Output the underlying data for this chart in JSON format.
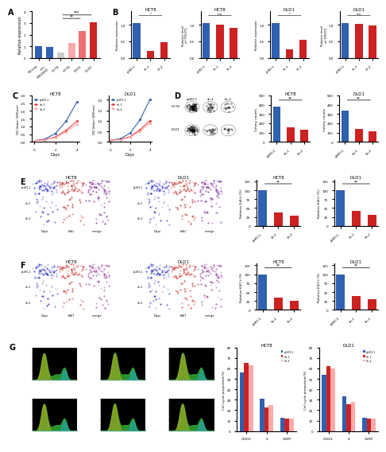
{
  "panel_A": {
    "categories": [
      "NCneg",
      "circ0062682",
      "HCT8",
      "HCT8_s",
      "DLD1",
      "DLD1_s"
    ],
    "tick_labels": [
      "NCneg",
      "circ-\n0062682",
      "HCT8",
      "HCT8",
      "DLD1",
      "DLD1"
    ],
    "values": [
      1.0,
      0.92,
      0.45,
      1.25,
      2.3,
      3.05
    ],
    "colors": [
      "#3060B0",
      "#3060B0",
      "#CCCCCC",
      "#F8AAAA",
      "#EE7070",
      "#CC2222"
    ],
    "ylabel": "Relative expression",
    "ylim": [
      0,
      4.0
    ],
    "sig_pairs": [
      [
        2,
        4,
        "**",
        3.4
      ],
      [
        2,
        5,
        "***",
        3.7
      ]
    ]
  },
  "panel_B": {
    "charts": [
      {
        "title": "HCT8",
        "ylabel": "Relative expression",
        "categories": [
          "pLKO.1",
          "sh-1",
          "sh-2"
        ],
        "values": [
          1.05,
          0.22,
          0.48
        ],
        "colors": [
          "#3060B0",
          "#CC2222",
          "#CC2222"
        ],
        "ylim": [
          0,
          1.4
        ],
        "sig": "*",
        "yticks": [
          0,
          0.5,
          1.0
        ]
      },
      {
        "title": "HCT8",
        "ylabel": "Relative level\nof TP53T2",
        "categories": [
          "pLKO.1",
          "sh-1",
          "sh-2"
        ],
        "values": [
          1.05,
          1.0,
          0.9
        ],
        "colors": [
          "#3060B0",
          "#CC2222",
          "#CC2222"
        ],
        "ylim": [
          0,
          1.4
        ],
        "sig": "n.s.",
        "yticks": [
          0,
          0.5,
          1.0
        ]
      },
      {
        "title": "DLD1",
        "ylabel": "Relative expression",
        "categories": [
          "pLKO.1",
          "sh-1",
          "sh-2"
        ],
        "values": [
          1.05,
          0.25,
          0.55
        ],
        "colors": [
          "#3060B0",
          "#CC2222",
          "#CC2222"
        ],
        "ylim": [
          0,
          1.4
        ],
        "sig": "*",
        "yticks": [
          0,
          0.5,
          1.0
        ]
      },
      {
        "title": "DLD1",
        "ylabel": "Relative level\nof TP53T2",
        "categories": [
          "pLKO.1",
          "sh-1",
          "sh-2"
        ],
        "values": [
          1.05,
          1.02,
          0.98
        ],
        "colors": [
          "#3060B0",
          "#CC2222",
          "#CC2222"
        ],
        "ylim": [
          0,
          1.4
        ],
        "sig": "n.s.",
        "yticks": [
          0,
          0.5,
          1.0
        ]
      }
    ]
  },
  "panel_C": {
    "HCT8": {
      "title": "HCT8",
      "xlabel": "Days",
      "ylabel": "OD Value (490nm)",
      "days": [
        0,
        1,
        2,
        3,
        4
      ],
      "series": [
        {
          "label": "pLKO.1",
          "color": "#3060B0",
          "values": [
            0.08,
            0.18,
            0.55,
            1.35,
            2.6
          ]
        },
        {
          "label": "sh-1",
          "color": "#EE4040",
          "values": [
            0.08,
            0.14,
            0.32,
            0.75,
            1.35
          ]
        },
        {
          "label": "sh-2",
          "color": "#FFAAAA",
          "values": [
            0.08,
            0.12,
            0.28,
            0.65,
            1.15
          ]
        }
      ],
      "ylim": [
        0,
        3.0
      ]
    },
    "DLD1": {
      "title": "DLD1",
      "xlabel": "Days",
      "ylabel": "OD Value (490nm)",
      "days": [
        0,
        1,
        2,
        3,
        4
      ],
      "series": [
        {
          "label": "pLKO.1",
          "color": "#3060B0",
          "values": [
            0.08,
            0.15,
            0.42,
            1.05,
            2.0
          ]
        },
        {
          "label": "sh-1",
          "color": "#EE4040",
          "values": [
            0.08,
            0.12,
            0.25,
            0.58,
            1.0
          ]
        },
        {
          "label": "sh-2",
          "color": "#FFAAAA",
          "values": [
            0.08,
            0.1,
            0.22,
            0.5,
            0.88
          ]
        }
      ],
      "ylim": [
        0,
        2.2
      ]
    }
  },
  "panel_D": {
    "HCT8": {
      "title": "HCT8",
      "categories": [
        "pLKO.1",
        "sh-1",
        "sh-2"
      ],
      "values": [
        380,
        160,
        130
      ],
      "colors": [
        "#3060B0",
        "#CC2222",
        "#CC2222"
      ],
      "ylabel": "Colony counts",
      "ylim": [
        0,
        500
      ],
      "sig": "**"
    },
    "DLD1": {
      "title": "DLD1",
      "categories": [
        "pLKO.1",
        "sh-1",
        "sh-2"
      ],
      "values": [
        340,
        140,
        115
      ],
      "colors": [
        "#3060B0",
        "#CC2222",
        "#CC2222"
      ],
      "ylabel": "Colony counts",
      "ylim": [
        0,
        500
      ],
      "sig": "**"
    }
  },
  "panel_E": {
    "HCT8": {
      "title": "HCT8",
      "categories": [
        "pLKO.1",
        "sh-1",
        "sh-2"
      ],
      "values": [
        100,
        38,
        28
      ],
      "colors": [
        "#3060B0",
        "#CC2222",
        "#CC2222"
      ],
      "ylabel": "Relative EdU+(%)",
      "ylim": [
        0,
        130
      ],
      "sig": "**"
    },
    "DLD1": {
      "title": "DLD1",
      "categories": [
        "pLKO.1",
        "sh-1",
        "sh-2"
      ],
      "values": [
        100,
        42,
        32
      ],
      "colors": [
        "#3060B0",
        "#CC2222",
        "#CC2222"
      ],
      "ylabel": "Relative EdU+(%)",
      "ylim": [
        0,
        130
      ],
      "sig": "**"
    }
  },
  "panel_F": {
    "HCT8": {
      "title": "HCT8",
      "categories": [
        "pLKO.1",
        "sh-1",
        "sh-2"
      ],
      "values": [
        100,
        35,
        25
      ],
      "colors": [
        "#3060B0",
        "#CC2222",
        "#CC2222"
      ],
      "ylabel": "Relative Ki67+(%)",
      "ylim": [
        0,
        130
      ],
      "sig": "**"
    },
    "DLD1": {
      "title": "DLD1",
      "categories": [
        "pLKO.1",
        "sh-1",
        "sh-2"
      ],
      "values": [
        100,
        40,
        30
      ],
      "colors": [
        "#3060B0",
        "#CC2222",
        "#CC2222"
      ],
      "ylabel": "Relative Ki67+(%)",
      "ylim": [
        0,
        130
      ],
      "sig": "**"
    }
  },
  "panel_G": {
    "HCT8": {
      "title": "HCT8",
      "categories": [
        "G0/G1",
        "S",
        "G2/M"
      ],
      "series": [
        {
          "label": "pLKO.1",
          "color": "#3060B0",
          "values": [
            56,
            31,
            13
          ]
        },
        {
          "label": "sh-1",
          "color": "#CC2222",
          "values": [
            65,
            23,
            12
          ]
        },
        {
          "label": "sh-2",
          "color": "#FFAAAA",
          "values": [
            63,
            25,
            12
          ]
        }
      ],
      "ylabel": "Cell cycle proportion(%)",
      "ylim": [
        0,
        80
      ]
    },
    "DLD1": {
      "title": "DLD1",
      "categories": [
        "G0/G1",
        "S",
        "G2/M"
      ],
      "series": [
        {
          "label": "pLKO.1",
          "color": "#3060B0",
          "values": [
            54,
            33,
            13
          ]
        },
        {
          "label": "sh-1",
          "color": "#CC2222",
          "values": [
            62,
            26,
            12
          ]
        },
        {
          "label": "sh-2",
          "color": "#FFAAAA",
          "values": [
            60,
            28,
            12
          ]
        }
      ],
      "ylabel": "Cell cycle proportion(%)",
      "ylim": [
        0,
        80
      ]
    }
  },
  "colors": {
    "blue": "#3060B0",
    "red": "#CC2222",
    "light_red": "#FFAAAA",
    "bg": "#ffffff",
    "dapi": "#1010BB",
    "edu": "#BB1010",
    "merge_edu": "#660088",
    "ki67": "#CC1010",
    "merge_ki67": "#882288",
    "flow_green": "#33AA33",
    "flow_yellow": "#AAAA22",
    "flow_cyan": "#22AAAA"
  }
}
